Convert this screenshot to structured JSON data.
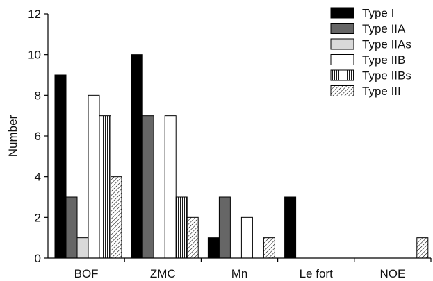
{
  "chart_data": {
    "type": "bar",
    "title": "",
    "xlabel": "",
    "ylabel": "Number",
    "ylim": [
      0,
      12
    ],
    "yticks": [
      "0",
      "2",
      "4",
      "6",
      "8",
      "10",
      "12"
    ],
    "grid": false,
    "legend_position": "top-right",
    "categories": [
      "BOF",
      "ZMC",
      "Mn",
      "Le fort",
      "NOE"
    ],
    "series": [
      {
        "name": "Type I",
        "values": [
          9,
          10,
          1,
          3,
          0
        ],
        "fill": "#000000",
        "pattern": "solid"
      },
      {
        "name": "Type IIA",
        "values": [
          3,
          7,
          3,
          0,
          0
        ],
        "fill": "#666666",
        "pattern": "solid"
      },
      {
        "name": "Type IIAs",
        "values": [
          1,
          0,
          0,
          0,
          0
        ],
        "fill": "#d9d9d9",
        "pattern": "solid"
      },
      {
        "name": "Type IIB",
        "values": [
          8,
          7,
          2,
          0,
          0
        ],
        "fill": "#ffffff",
        "pattern": "solid"
      },
      {
        "name": "Type IIBs",
        "values": [
          7,
          3,
          0,
          0,
          0
        ],
        "fill": "#ffffff",
        "pattern": "vertical-lines"
      },
      {
        "name": "Type III",
        "values": [
          4,
          2,
          1,
          0,
          1
        ],
        "fill": "#ffffff",
        "pattern": "diagonal-lines"
      }
    ]
  }
}
